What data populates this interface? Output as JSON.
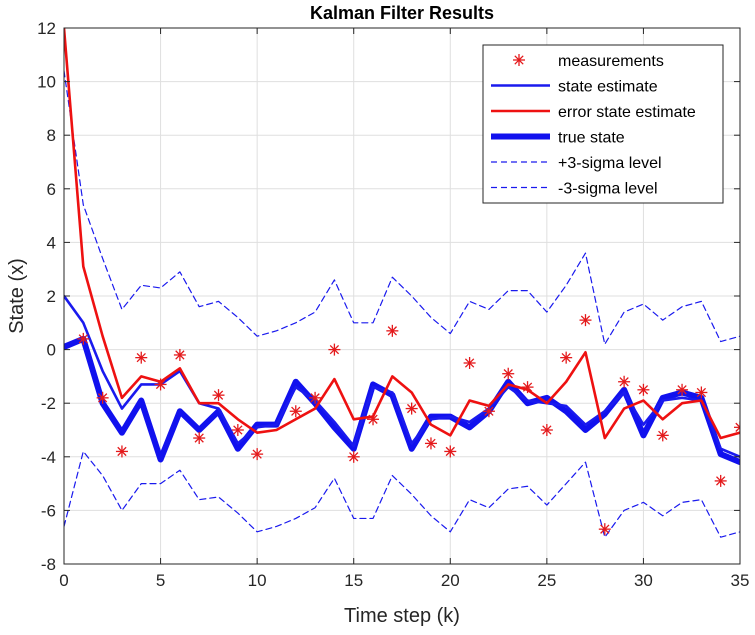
{
  "chart_data": {
    "type": "line",
    "title": "Kalman Filter Results",
    "xlabel": "Time step (k)",
    "ylabel": "State (x)",
    "xlim": [
      0,
      35
    ],
    "ylim": [
      -8,
      12
    ],
    "xticks": [
      0,
      5,
      10,
      15,
      20,
      25,
      30,
      35
    ],
    "yticks": [
      -8,
      -6,
      -4,
      -2,
      0,
      2,
      4,
      6,
      8,
      10,
      12
    ],
    "grid": true,
    "legend_position": "top-right",
    "x": [
      0,
      1,
      2,
      3,
      4,
      5,
      6,
      7,
      8,
      9,
      10,
      11,
      12,
      13,
      14,
      15,
      16,
      17,
      18,
      19,
      20,
      21,
      22,
      23,
      24,
      25,
      26,
      27,
      28,
      29,
      30,
      31,
      32,
      33,
      34,
      35
    ],
    "series": [
      {
        "name": "measurements",
        "style": "marker",
        "color": "#e41a1c",
        "values": [
          null,
          0.4,
          -1.8,
          -3.8,
          -0.3,
          -1.3,
          -0.2,
          -3.3,
          -1.7,
          -3.0,
          -3.9,
          null,
          -2.3,
          -1.8,
          0.0,
          -4.0,
          -2.6,
          0.7,
          -2.2,
          -3.5,
          -3.8,
          -0.5,
          -2.3,
          -0.9,
          -1.4,
          -3.0,
          -0.3,
          1.1,
          -6.7,
          -1.2,
          -1.5,
          -3.2,
          -1.5,
          -1.6,
          -4.9,
          -2.9
        ]
      },
      {
        "name": "state estimate",
        "style": "line",
        "color": "#1a1aee",
        "values": [
          2.0,
          1.0,
          -0.8,
          -2.2,
          -1.3,
          -1.3,
          -0.8,
          -2.0,
          -2.2,
          -3.5,
          -2.9,
          -2.8,
          -1.4,
          -1.9,
          -2.7,
          -3.6,
          -1.4,
          -1.6,
          -3.5,
          -2.6,
          -2.5,
          -2.7,
          -2.2,
          -1.4,
          -1.9,
          -2.0,
          -2.1,
          -2.8,
          -2.3,
          -1.6,
          -2.8,
          -1.9,
          -1.8,
          -1.9,
          -3.7,
          -4.0
        ]
      },
      {
        "name": "error state estimate",
        "style": "line",
        "color": "#ee1111",
        "values": [
          12.0,
          3.1,
          0.5,
          -1.8,
          -1.0,
          -1.2,
          -0.7,
          -2.0,
          -2.0,
          -2.6,
          -3.1,
          -3.0,
          -2.6,
          -2.2,
          -1.1,
          -2.6,
          -2.5,
          -1.0,
          -1.6,
          -2.8,
          -3.2,
          -1.9,
          -2.1,
          -1.3,
          -1.5,
          -2.0,
          -1.2,
          -0.1,
          -3.3,
          -2.2,
          -1.9,
          -2.6,
          -2.0,
          -1.9,
          -3.3,
          -3.1
        ]
      },
      {
        "name": "true state",
        "style": "thick-line",
        "color": "#1111ee",
        "values": [
          0.1,
          0.4,
          -2.0,
          -3.1,
          -1.9,
          -4.1,
          -2.3,
          -3.0,
          -2.3,
          -3.7,
          -2.8,
          -2.8,
          -1.2,
          -2.0,
          -2.9,
          -3.7,
          -1.3,
          -1.7,
          -3.7,
          -2.5,
          -2.5,
          -2.9,
          -2.3,
          -1.2,
          -2.0,
          -1.8,
          -2.3,
          -3.0,
          -2.4,
          -1.5,
          -3.2,
          -1.8,
          -1.6,
          -1.8,
          -3.9,
          -4.2
        ]
      },
      {
        "name": "+3-sigma level",
        "style": "dashed",
        "color": "#1a1aee",
        "values": [
          10.4,
          5.4,
          3.4,
          1.5,
          2.4,
          2.3,
          2.9,
          1.6,
          1.8,
          1.2,
          0.5,
          0.7,
          1.0,
          1.4,
          2.6,
          1.0,
          1.0,
          2.7,
          2.0,
          1.2,
          0.6,
          1.8,
          1.5,
          2.2,
          2.2,
          1.4,
          2.4,
          3.6,
          0.2,
          1.4,
          1.7,
          1.1,
          1.6,
          1.8,
          0.3,
          0.5
        ]
      },
      {
        "name": "-3-sigma level",
        "style": "dashed",
        "color": "#1a1aee",
        "values": [
          -6.6,
          -3.8,
          -4.7,
          -6.0,
          -5.0,
          -5.0,
          -4.5,
          -5.6,
          -5.5,
          -6.1,
          -6.8,
          -6.6,
          -6.3,
          -5.9,
          -4.8,
          -6.3,
          -6.3,
          -4.7,
          -5.4,
          -6.2,
          -6.8,
          -5.6,
          -5.9,
          -5.2,
          -5.1,
          -5.8,
          -5.0,
          -4.2,
          -7.0,
          -6.0,
          -5.7,
          -6.2,
          -5.7,
          -5.6,
          -7.0,
          -6.8
        ]
      }
    ]
  }
}
